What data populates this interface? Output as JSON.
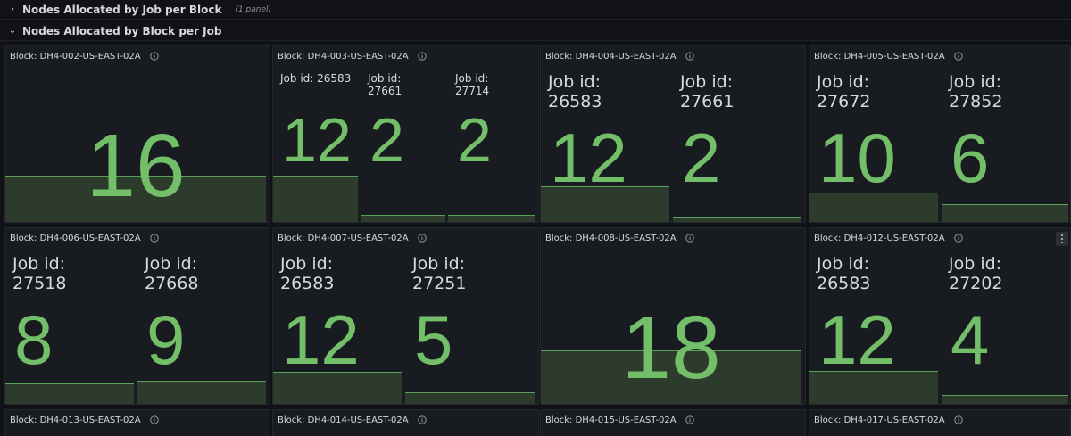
{
  "rows": [
    {
      "title": "Nodes Allocated by Job per Block",
      "count": "(1 panel)",
      "collapsed": true
    },
    {
      "title": "Nodes Allocated by Block per Job",
      "collapsed": false
    }
  ],
  "panels": [
    {
      "title": "Block: DH4-002-US-EAST-02A",
      "jobs": [
        {
          "label": "",
          "value": "16"
        }
      ]
    },
    {
      "title": "Block: DH4-003-US-EAST-02A",
      "jobs": [
        {
          "label": "Job id: 26583",
          "value": "12"
        },
        {
          "label": "Job id:\n27661",
          "value": "2"
        },
        {
          "label": "Job id:\n27714",
          "value": "2"
        }
      ]
    },
    {
      "title": "Block: DH4-004-US-EAST-02A",
      "jobs": [
        {
          "label": "Job id:\n26583",
          "value": "12"
        },
        {
          "label": "Job id:\n27661",
          "value": "2"
        }
      ]
    },
    {
      "title": "Block: DH4-005-US-EAST-02A",
      "jobs": [
        {
          "label": "Job id:\n27672",
          "value": "10"
        },
        {
          "label": "Job id:\n27852",
          "value": "6"
        }
      ]
    },
    {
      "title": "Block: DH4-006-US-EAST-02A",
      "jobs": [
        {
          "label": "Job id:\n27518",
          "value": "8"
        },
        {
          "label": "Job id:\n27668",
          "value": "9"
        }
      ]
    },
    {
      "title": "Block: DH4-007-US-EAST-02A",
      "jobs": [
        {
          "label": "Job id:\n26583",
          "value": "12"
        },
        {
          "label": "Job id:\n27251",
          "value": "5"
        }
      ]
    },
    {
      "title": "Block: DH4-008-US-EAST-02A",
      "jobs": [
        {
          "label": "",
          "value": "18"
        }
      ]
    },
    {
      "title": "Block: DH4-012-US-EAST-02A",
      "jobs": [
        {
          "label": "Job id:\n26583",
          "value": "12"
        },
        {
          "label": "Job id:\n27202",
          "value": "4"
        }
      ]
    },
    {
      "title": "Block: DH4-013-US-EAST-02A",
      "jobs": []
    },
    {
      "title": "Block: DH4-014-US-EAST-02A",
      "jobs": []
    },
    {
      "title": "Block: DH4-015-US-EAST-02A",
      "jobs": []
    },
    {
      "title": "Block: DH4-017-US-EAST-02A",
      "jobs": []
    }
  ],
  "icons": {
    "row_collapsed": "chevron-right-icon",
    "row_expanded": "chevron-down-icon",
    "panel_info": "info-icon",
    "panel_menu": "kebab-menu-icon"
  },
  "colors": {
    "value": "#73bf69",
    "spark_fill": "#2c3b2c",
    "spark_line": "#5aa05a",
    "background": "#111217",
    "panel": "#181b1f"
  }
}
